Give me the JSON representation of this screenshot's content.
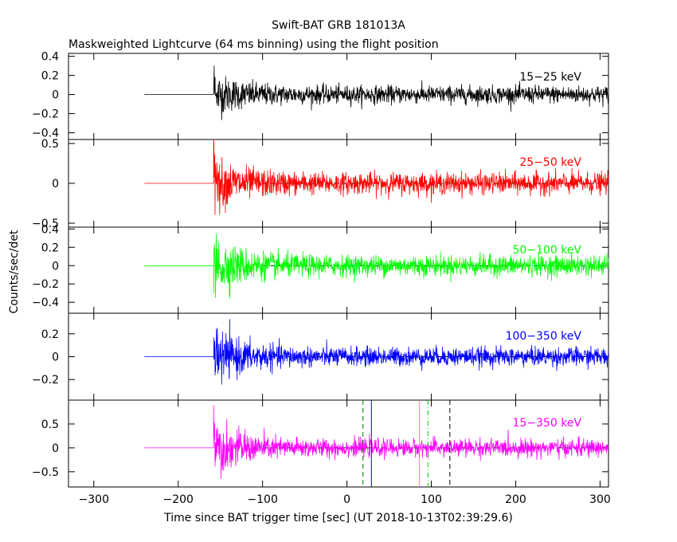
{
  "chart_data": {
    "type": "line",
    "title": "Swift-BAT GRB 181013A",
    "subtitle": "Maskweighted Lightcurve (64 ms binning) using the flight position",
    "xlabel": "Time since BAT trigger time [sec] (UT 2018-10-13T02:39:29.6)",
    "ylabel": "Counts/sec/det",
    "xlim": [
      -330,
      310
    ],
    "xticks": [
      -300,
      -200,
      -100,
      0,
      100,
      200,
      300
    ],
    "xtick_labels": [
      "−300",
      "−200",
      "−100",
      "0",
      "100",
      "200",
      "300"
    ],
    "data_start": -240,
    "burst_onset": -158,
    "panels": [
      {
        "band": "15−25 keV",
        "color": "#000000",
        "ylim": [
          -0.47,
          0.43
        ],
        "yticks": [
          -0.4,
          -0.2,
          0,
          0.2,
          0.4
        ],
        "ytick_labels": [
          "−0.4",
          "−0.2",
          "0",
          "0.2",
          "0.4"
        ],
        "noise_start": 0.12,
        "noise_end": 0.045,
        "spike": 0.38
      },
      {
        "band": "25−50 keV",
        "color": "#ff0000",
        "ylim": [
          -0.55,
          0.55
        ],
        "yticks": [
          -0.5,
          0,
          0.5
        ],
        "ytick_labels": [
          "−0.5",
          "0",
          "0.5"
        ],
        "noise_start": 0.18,
        "noise_end": 0.065,
        "spike": 0.55
      },
      {
        "band": "50−100 keV",
        "color": "#00ff00",
        "ylim": [
          -0.52,
          0.42
        ],
        "yticks": [
          -0.4,
          -0.2,
          0,
          0.2,
          0.4
        ],
        "ytick_labels": [
          "−0.4",
          "−0.2",
          "0",
          "0.2",
          "0.4"
        ],
        "noise_start": 0.17,
        "noise_end": 0.055,
        "spike": 0.4
      },
      {
        "band": "100−350 keV",
        "color": "#0000ff",
        "ylim": [
          -0.38,
          0.38
        ],
        "yticks": [
          -0.2,
          0,
          0.2
        ],
        "ytick_labels": [
          "−0.2",
          "0",
          "0.2"
        ],
        "noise_start": 0.13,
        "noise_end": 0.04,
        "spike": 0.3
      },
      {
        "band": "15−350 keV",
        "color": "#ff00ff",
        "ylim": [
          -0.82,
          1.0
        ],
        "yticks": [
          -0.5,
          0,
          0.5
        ],
        "ytick_labels": [
          "−0.5",
          "0",
          "0.5"
        ],
        "noise_start": 0.3,
        "noise_end": 0.09,
        "spike": 0.9
      }
    ],
    "markers": [
      {
        "x": 19,
        "color": "#008000",
        "style": "dashed"
      },
      {
        "x": 29,
        "color": "#0000ff",
        "style": "solid"
      },
      {
        "x": 86,
        "color": "#ff9900",
        "style": "solid"
      },
      {
        "x": 96,
        "color": "#00cc00",
        "style": "dashdot"
      },
      {
        "x": 122,
        "color": "#000000",
        "style": "dashed"
      }
    ]
  }
}
